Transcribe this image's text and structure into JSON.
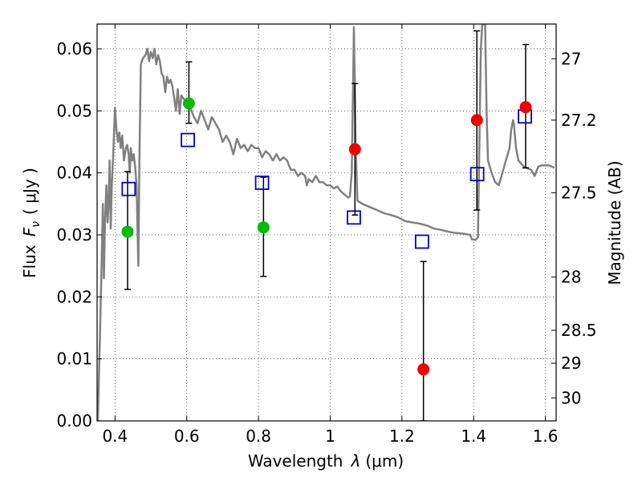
{
  "chart_data": {
    "type": "scatter",
    "xlabel": "Wavelength",
    "xlabel_symbol": "λ",
    "xlabel_unit": "(μm)",
    "ylabel": "Flux",
    "ylabel_symbol": "F",
    "ylabel_subscript": "ν",
    "ylabel_unit": "( μJy )",
    "y2label": "Magnitude (AB)",
    "xlim": [
      0.35,
      1.63
    ],
    "ylim": [
      0.0,
      0.064
    ],
    "grid": true,
    "x_ticks": [
      0.4,
      0.6,
      0.8,
      1.0,
      1.2,
      1.4,
      1.6
    ],
    "x_tick_labels": [
      "0.4",
      "0.6",
      "0.8",
      "1",
      "1.2",
      "1.4",
      "1.6"
    ],
    "y_ticks": [
      0.0,
      0.01,
      0.02,
      0.03,
      0.04,
      0.05,
      0.06
    ],
    "y_tick_labels": [
      "0.00",
      "0.01",
      "0.02",
      "0.03",
      "0.04",
      "0.05",
      "0.06"
    ],
    "y2_ticks": [
      {
        "label": "27",
        "flux": 0.0584
      },
      {
        "label": "27.2",
        "flux": 0.0485
      },
      {
        "label": "27.5",
        "flux": 0.0368
      },
      {
        "label": "28",
        "flux": 0.0232
      },
      {
        "label": "28.5",
        "flux": 0.0146
      },
      {
        "label": "29",
        "flux": 0.0093
      },
      {
        "label": "30",
        "flux": 0.0037
      }
    ],
    "series": [
      {
        "kind": "line",
        "color": "#808080",
        "points": [
          [
            0.352,
            0.0
          ],
          [
            0.358,
            0.014
          ],
          [
            0.362,
            0.024
          ],
          [
            0.366,
            0.035
          ],
          [
            0.369,
            0.023
          ],
          [
            0.372,
            0.032
          ],
          [
            0.376,
            0.038
          ],
          [
            0.379,
            0.032
          ],
          [
            0.382,
            0.035
          ],
          [
            0.385,
            0.042
          ],
          [
            0.388,
            0.031
          ],
          [
            0.391,
            0.038
          ],
          [
            0.395,
            0.043
          ],
          [
            0.4,
            0.0505
          ],
          [
            0.404,
            0.047
          ],
          [
            0.408,
            0.045
          ],
          [
            0.412,
            0.0465
          ],
          [
            0.416,
            0.044
          ],
          [
            0.42,
            0.046
          ],
          [
            0.425,
            0.042
          ],
          [
            0.43,
            0.044
          ],
          [
            0.434,
            0.0445
          ],
          [
            0.438,
            0.043
          ],
          [
            0.441,
            0.04
          ],
          [
            0.444,
            0.044
          ],
          [
            0.448,
            0.042
          ],
          [
            0.452,
            0.043
          ],
          [
            0.456,
            0.041
          ],
          [
            0.46,
            0.038
          ],
          [
            0.463,
            0.03
          ],
          [
            0.465,
            0.025
          ],
          [
            0.468,
            0.042
          ],
          [
            0.472,
            0.0575
          ],
          [
            0.478,
            0.0585
          ],
          [
            0.485,
            0.059
          ],
          [
            0.49,
            0.06
          ],
          [
            0.495,
            0.058
          ],
          [
            0.5,
            0.0595
          ],
          [
            0.505,
            0.0585
          ],
          [
            0.51,
            0.06
          ],
          [
            0.515,
            0.0575
          ],
          [
            0.52,
            0.059
          ],
          [
            0.525,
            0.058
          ],
          [
            0.53,
            0.056
          ],
          [
            0.535,
            0.0555
          ],
          [
            0.54,
            0.053
          ],
          [
            0.545,
            0.0555
          ],
          [
            0.55,
            0.0545
          ],
          [
            0.555,
            0.055
          ],
          [
            0.56,
            0.054
          ],
          [
            0.565,
            0.052
          ],
          [
            0.57,
            0.05
          ],
          [
            0.575,
            0.0535
          ],
          [
            0.58,
            0.0495
          ],
          [
            0.585,
            0.0525
          ],
          [
            0.59,
            0.052
          ],
          [
            0.6,
            0.0515
          ],
          [
            0.61,
            0.0505
          ],
          [
            0.62,
            0.049
          ],
          [
            0.63,
            0.048
          ],
          [
            0.64,
            0.05
          ],
          [
            0.65,
            0.0485
          ],
          [
            0.66,
            0.047
          ],
          [
            0.67,
            0.049
          ],
          [
            0.68,
            0.048
          ],
          [
            0.69,
            0.047
          ],
          [
            0.7,
            0.045
          ],
          [
            0.71,
            0.046
          ],
          [
            0.72,
            0.045
          ],
          [
            0.73,
            0.043
          ],
          [
            0.74,
            0.0455
          ],
          [
            0.75,
            0.044
          ],
          [
            0.76,
            0.0445
          ],
          [
            0.77,
            0.0435
          ],
          [
            0.78,
            0.0445
          ],
          [
            0.79,
            0.044
          ],
          [
            0.8,
            0.044
          ],
          [
            0.81,
            0.0425
          ],
          [
            0.82,
            0.0435
          ],
          [
            0.83,
            0.043
          ],
          [
            0.84,
            0.042
          ],
          [
            0.85,
            0.043
          ],
          [
            0.86,
            0.042
          ],
          [
            0.87,
            0.0425
          ],
          [
            0.88,
            0.042
          ],
          [
            0.89,
            0.0405
          ],
          [
            0.9,
            0.0405
          ],
          [
            0.91,
            0.0395
          ],
          [
            0.92,
            0.04
          ],
          [
            0.93,
            0.0395
          ],
          [
            0.935,
            0.038
          ],
          [
            0.94,
            0.039
          ],
          [
            0.95,
            0.0385
          ],
          [
            0.96,
            0.0395
          ],
          [
            0.97,
            0.0385
          ],
          [
            0.98,
            0.0385
          ],
          [
            0.99,
            0.038
          ],
          [
            1.0,
            0.038
          ],
          [
            1.01,
            0.0375
          ],
          [
            1.02,
            0.0378
          ],
          [
            1.03,
            0.037
          ],
          [
            1.04,
            0.0365
          ],
          [
            1.05,
            0.036
          ],
          [
            1.055,
            0.0362
          ],
          [
            1.06,
            0.04
          ],
          [
            1.064,
            0.055
          ],
          [
            1.066,
            0.0635
          ],
          [
            1.068,
            0.056
          ],
          [
            1.071,
            0.044
          ],
          [
            1.076,
            0.0355
          ],
          [
            1.09,
            0.035
          ],
          [
            1.11,
            0.0345
          ],
          [
            1.13,
            0.034
          ],
          [
            1.15,
            0.0335
          ],
          [
            1.17,
            0.0332
          ],
          [
            1.19,
            0.0328
          ],
          [
            1.21,
            0.0322
          ],
          [
            1.23,
            0.032
          ],
          [
            1.25,
            0.0318
          ],
          [
            1.27,
            0.0315
          ],
          [
            1.29,
            0.031
          ],
          [
            1.31,
            0.0308
          ],
          [
            1.33,
            0.0305
          ],
          [
            1.35,
            0.0303
          ],
          [
            1.37,
            0.0302
          ],
          [
            1.39,
            0.03
          ],
          [
            1.395,
            0.0293
          ],
          [
            1.405,
            0.0292
          ],
          [
            1.412,
            0.0296
          ],
          [
            1.416,
            0.045
          ],
          [
            1.42,
            0.06
          ],
          [
            1.424,
            0.064
          ],
          [
            1.432,
            0.064
          ],
          [
            1.436,
            0.05
          ],
          [
            1.44,
            0.042
          ],
          [
            1.45,
            0.04
          ],
          [
            1.46,
            0.0385
          ],
          [
            1.47,
            0.038
          ],
          [
            1.48,
            0.04
          ],
          [
            1.49,
            0.042
          ],
          [
            1.5,
            0.044
          ],
          [
            1.505,
            0.047
          ],
          [
            1.51,
            0.0485
          ],
          [
            1.512,
            0.048
          ],
          [
            1.518,
            0.044
          ],
          [
            1.525,
            0.042
          ],
          [
            1.54,
            0.041
          ],
          [
            1.56,
            0.0405
          ],
          [
            1.57,
            0.0395
          ],
          [
            1.58,
            0.041
          ],
          [
            1.59,
            0.0412
          ],
          [
            1.61,
            0.0412
          ],
          [
            1.625,
            0.0408
          ]
        ]
      },
      {
        "kind": "errorbar",
        "color": "#000000",
        "points": [
          {
            "x": 0.435,
            "y": 0.0305,
            "lo": 0.0212,
            "hi": 0.0402
          },
          {
            "x": 0.606,
            "y": 0.0512,
            "lo": 0.048,
            "hi": 0.0579
          },
          {
            "x": 0.814,
            "y": 0.0312,
            "lo": 0.0233,
            "hi": 0.0393
          },
          {
            "x": 1.069,
            "y": 0.0438,
            "lo": 0.0332,
            "hi": 0.0544
          },
          {
            "x": 1.26,
            "y": 0.0083,
            "lo": 0.0,
            "hi": 0.0257
          },
          {
            "x": 1.409,
            "y": 0.0485,
            "lo": 0.034,
            "hi": 0.0629
          },
          {
            "x": 1.545,
            "y": 0.0506,
            "lo": 0.0408,
            "hi": 0.0607
          }
        ]
      },
      {
        "kind": "marker-circle",
        "color": "#00bb00",
        "points": [
          [
            0.435,
            0.0305
          ],
          [
            0.606,
            0.0512
          ],
          [
            0.814,
            0.0312
          ]
        ]
      },
      {
        "kind": "marker-circle",
        "color": "#ee0000",
        "points": [
          [
            1.069,
            0.0438
          ],
          [
            1.26,
            0.0083
          ],
          [
            1.409,
            0.0485
          ],
          [
            1.545,
            0.0506
          ]
        ]
      },
      {
        "kind": "marker-square-open",
        "color": "#0000cc",
        "points": [
          [
            0.438,
            0.0374
          ],
          [
            0.603,
            0.0453
          ],
          [
            0.81,
            0.0384
          ],
          [
            1.066,
            0.0328
          ],
          [
            1.256,
            0.0289
          ],
          [
            1.41,
            0.0398
          ],
          [
            1.543,
            0.0491
          ]
        ]
      }
    ]
  }
}
